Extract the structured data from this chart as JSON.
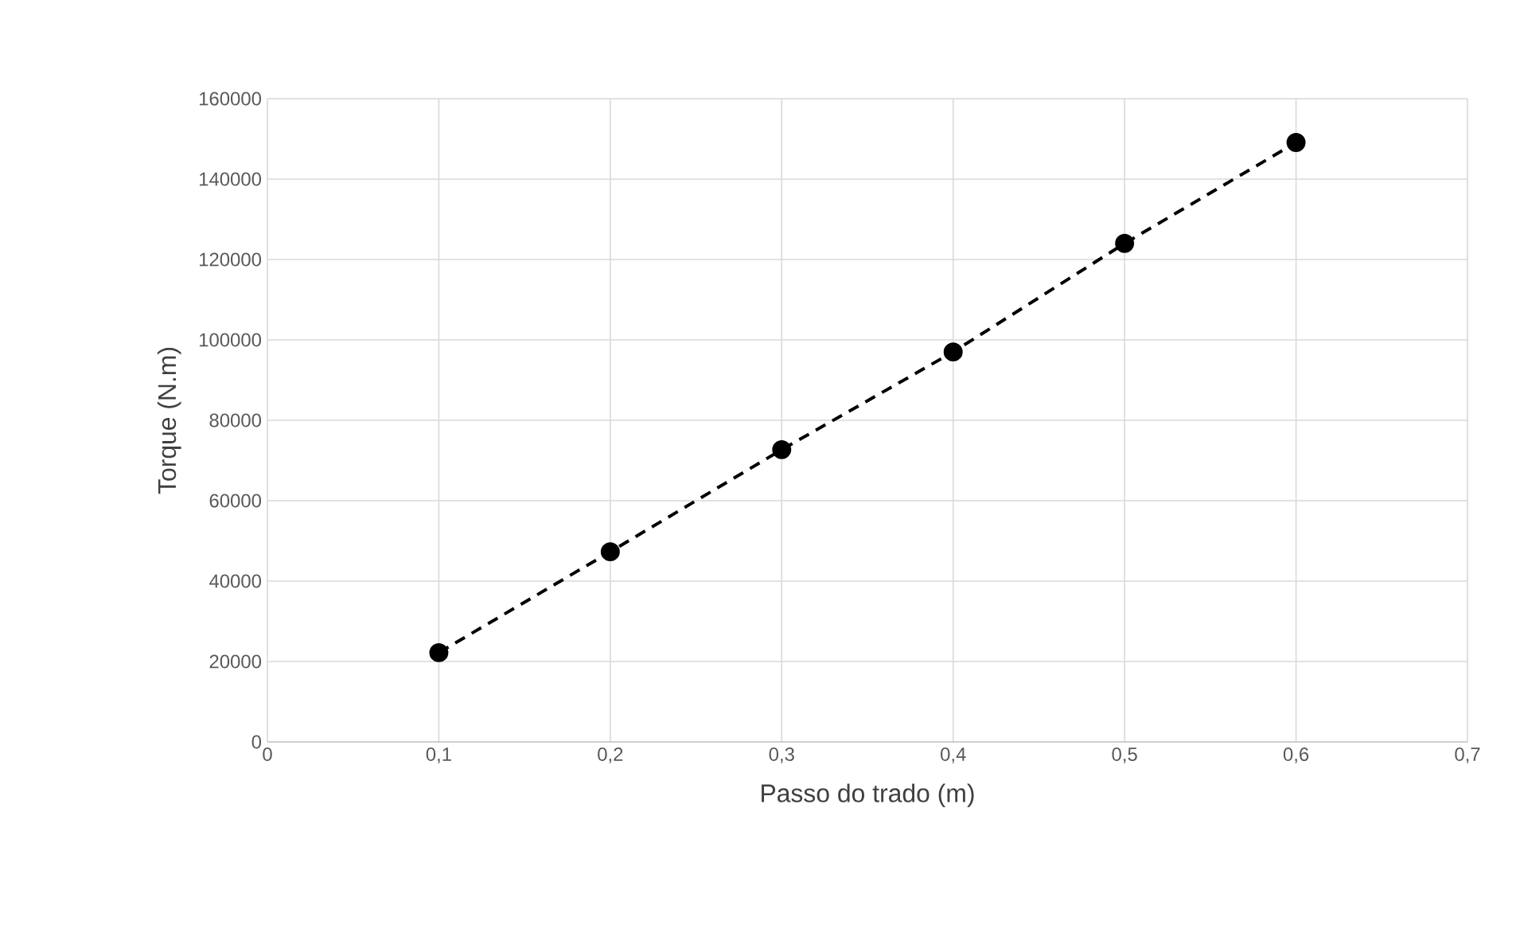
{
  "chart_data": {
    "type": "line",
    "xlabel": "Passo do trado (m)",
    "ylabel": "Torque (N.m)",
    "x": [
      0.1,
      0.2,
      0.3,
      0.4,
      0.5,
      0.6
    ],
    "series": [
      {
        "color": "#000000",
        "values": [
          22200,
          47300,
          72700,
          97000,
          124000,
          149100
        ]
      }
    ],
    "xlim": [
      0,
      0.7
    ],
    "ylim": [
      0,
      160000
    ],
    "xticks": [
      0,
      {
        "value": 0.1,
        "label": "0,1"
      },
      {
        "value": 0.2,
        "label": "0,2"
      },
      {
        "value": 0.3,
        "label": "0,3"
      },
      {
        "value": 0.4,
        "label": "0,4"
      },
      {
        "value": 0.5,
        "label": "0,5"
      },
      {
        "value": 0.6,
        "label": "0,6"
      },
      {
        "value": 0.7,
        "label": "0,7"
      }
    ],
    "yticks": [
      0,
      20000,
      40000,
      60000,
      80000,
      100000,
      120000,
      140000,
      160000
    ],
    "grid": true,
    "marker": "circle",
    "line_style": "dashed"
  }
}
